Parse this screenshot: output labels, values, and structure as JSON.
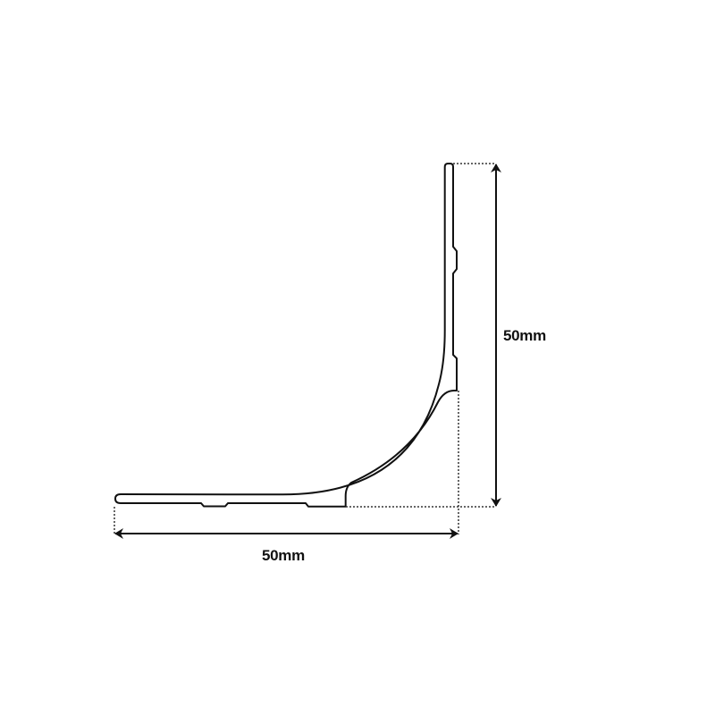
{
  "diagram": {
    "subject": "angle-bead-profile",
    "dimensions": {
      "height_label": "50mm",
      "width_label": "50mm"
    },
    "colors": {
      "line": "#111111",
      "background": "#ffffff"
    }
  }
}
